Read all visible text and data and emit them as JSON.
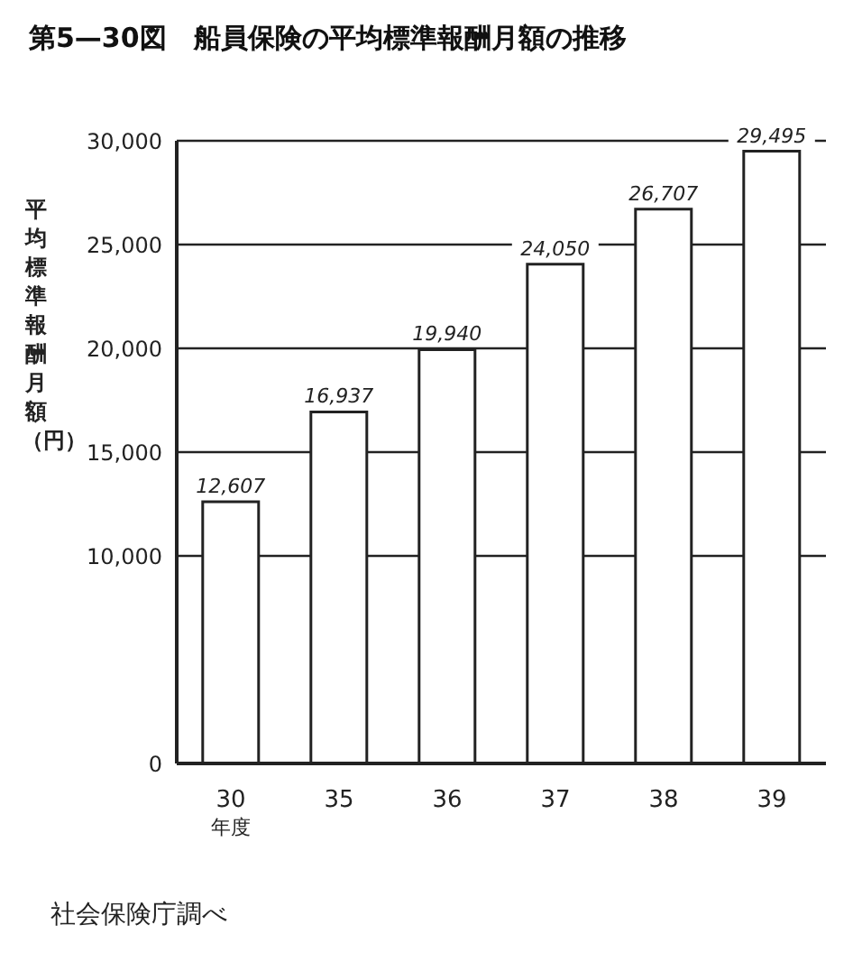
{
  "chart_data": {
    "type": "bar",
    "title": "第5—30図　船員保険の平均標準報酬月額の推移",
    "ylabel": "平均標準報酬月額（円）",
    "categories": [
      "30\n年度",
      "35",
      "36",
      "37",
      "38",
      "39"
    ],
    "values": [
      12607,
      16937,
      19940,
      24050,
      26707,
      29495
    ],
    "value_labels": [
      "12,607",
      "16,937",
      "19,940",
      "24,050",
      "26,707",
      "29,495"
    ],
    "color": "#ffffff",
    "ylim": [
      0,
      30000
    ],
    "yticks": [
      0,
      {
        "value": 10000,
        "label": "10,000"
      },
      {
        "value": 15000,
        "label": "15,000"
      },
      {
        "value": 20000,
        "label": "20,000"
      },
      {
        "value": 25000,
        "label": "25,000"
      },
      {
        "value": 30000,
        "label": "30,000"
      }
    ],
    "grid": "y",
    "annotations": [
      "社会保険庁調べ"
    ]
  }
}
